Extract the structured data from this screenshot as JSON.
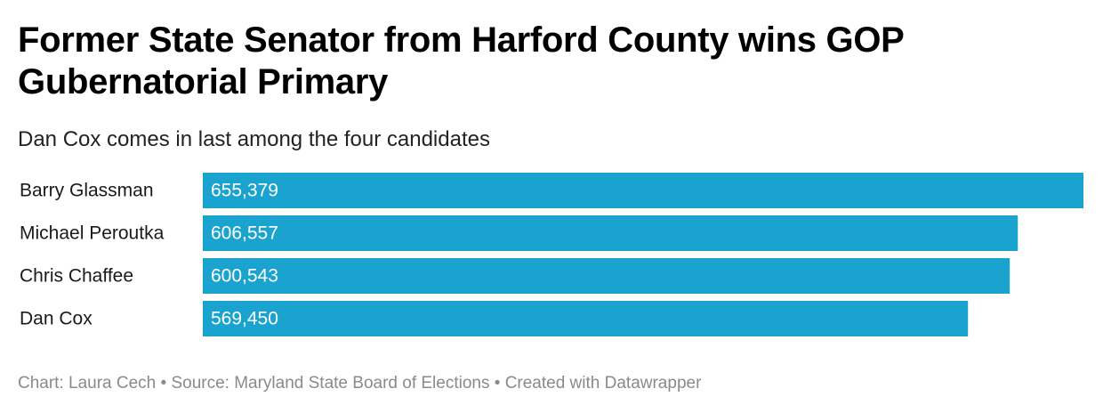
{
  "header": {
    "title": "Former State Senator from Harford County wins GOP Gubernatorial Primary",
    "subtitle": "Dan Cox comes in last among the four candidates"
  },
  "footer": {
    "text": "Chart: Laura Cech • Source: Maryland State Board of Elections • Created with Datawrapper"
  },
  "chart_data": {
    "type": "bar",
    "orientation": "horizontal",
    "categories": [
      "Barry Glassman",
      "Michael Peroutka",
      "Chris Chaffee",
      "Dan Cox"
    ],
    "values": [
      655379,
      606557,
      600543,
      569450
    ],
    "value_labels": [
      "655,379",
      "606,557",
      "600,543",
      "569,450"
    ],
    "title": "Former State Senator from Harford County wins GOP Gubernatorial Primary",
    "subtitle": "Dan Cox comes in last among the four candidates",
    "xlabel": "",
    "ylabel": "",
    "xlim": [
      0,
      655379
    ],
    "grid": false,
    "legend": "none",
    "bar_color": "#1ba3d0",
    "label_color": "#ffffff"
  }
}
